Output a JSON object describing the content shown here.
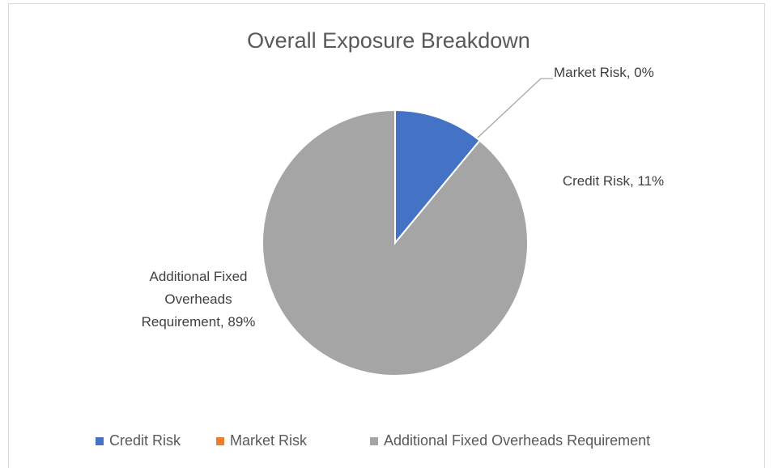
{
  "chart_data": {
    "type": "pie",
    "title": "Overall Exposure Breakdown",
    "categories": [
      "Credit Risk",
      "Market Risk",
      "Additional Fixed Overheads Requirement"
    ],
    "values": [
      11,
      0,
      89
    ],
    "value_labels": [
      "Credit Risk, 11%",
      "Market Risk, 0%",
      "Additional Fixed Overheads Requirement, 89%"
    ],
    "colors": [
      "#4472c4",
      "#ed7d31",
      "#a5a5a5"
    ],
    "legend": "bottom"
  }
}
